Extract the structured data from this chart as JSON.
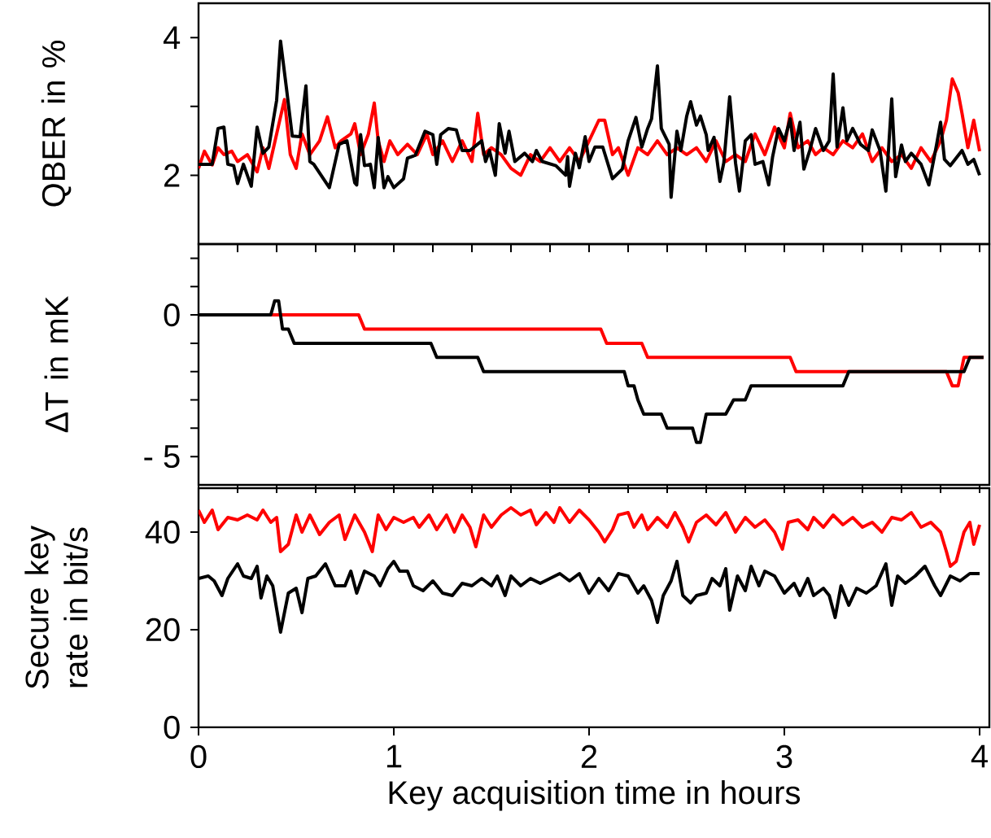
{
  "chart_data": [
    {
      "type": "line",
      "ylabel": "QBER in %",
      "xlim": [
        0,
        4.05
      ],
      "ylim": [
        1,
        4.5
      ],
      "yticks": [
        2,
        {
          "value": 3,
          "label": null
        },
        4
      ],
      "tick_labels": "y",
      "series": [
        {
          "color": "#ff0000",
          "x": [
            0,
            0.03,
            0.07,
            0.1,
            0.13,
            0.17,
            0.2,
            0.25,
            0.3,
            0.33,
            0.36,
            0.4,
            0.44,
            0.47,
            0.5,
            0.53,
            0.57,
            0.62,
            0.66,
            0.7,
            0.73,
            0.78,
            0.8,
            0.83,
            0.87,
            0.9,
            0.92,
            0.95,
            0.98,
            1.02,
            1.07,
            1.12,
            1.17,
            1.2,
            1.25,
            1.3,
            1.35,
            1.4,
            1.43,
            1.46,
            1.5,
            1.55,
            1.6,
            1.65,
            1.7,
            1.75,
            1.8,
            1.85,
            1.9,
            1.95,
            2.0,
            2.05,
            2.08,
            2.12,
            2.15,
            2.2,
            2.25,
            2.3,
            2.35,
            2.4,
            2.45,
            2.5,
            2.55,
            2.6,
            2.65,
            2.7,
            2.75,
            2.8,
            2.85,
            2.9,
            2.95,
            3.0,
            3.03,
            3.07,
            3.12,
            3.16,
            3.2,
            3.25,
            3.3,
            3.35,
            3.4,
            3.45,
            3.5,
            3.55,
            3.6,
            3.65,
            3.7,
            3.75,
            3.8,
            3.83,
            3.86,
            3.89,
            3.91,
            3.94,
            3.97,
            4.0
          ],
          "values": [
            2.1,
            2.35,
            2.15,
            2.4,
            2.3,
            2.35,
            2.2,
            2.3,
            2.05,
            2.4,
            2.1,
            2.6,
            3.1,
            2.3,
            2.1,
            2.6,
            2.3,
            2.5,
            2.85,
            2.4,
            2.5,
            2.6,
            2.75,
            2.3,
            2.6,
            3.05,
            2.5,
            2.2,
            2.5,
            2.3,
            2.45,
            2.3,
            2.6,
            2.3,
            2.5,
            2.2,
            2.5,
            2.2,
            2.9,
            2.3,
            2.4,
            2.3,
            2.1,
            2.0,
            2.3,
            2.2,
            2.4,
            2.2,
            2.4,
            2.2,
            2.5,
            2.8,
            2.8,
            2.3,
            2.4,
            2.0,
            2.4,
            2.3,
            2.5,
            2.3,
            2.4,
            2.3,
            2.4,
            2.2,
            2.5,
            2.2,
            2.3,
            2.2,
            2.6,
            2.3,
            2.7,
            2.4,
            2.9,
            2.4,
            2.5,
            2.3,
            2.4,
            2.3,
            2.5,
            2.4,
            2.6,
            2.2,
            2.4,
            2.2,
            2.3,
            2.1,
            2.4,
            2.2,
            2.5,
            2.8,
            3.4,
            3.2,
            2.9,
            2.4,
            2.8,
            2.35
          ]
        },
        {
          "color": "#000000",
          "x": [
            0,
            0.07,
            0.1,
            0.13,
            0.15,
            0.18,
            0.2,
            0.23,
            0.27,
            0.3,
            0.33,
            0.36,
            0.4,
            0.42,
            0.45,
            0.48,
            0.52,
            0.55,
            0.57,
            0.59,
            0.67,
            0.72,
            0.76,
            0.8,
            0.81,
            0.83,
            0.85,
            0.88,
            0.9,
            0.92,
            0.95,
            0.97,
            1.0,
            1.05,
            1.07,
            1.11,
            1.16,
            1.2,
            1.22,
            1.24,
            1.28,
            1.32,
            1.35,
            1.39,
            1.45,
            1.47,
            1.49,
            1.52,
            1.54,
            1.57,
            1.59,
            1.62,
            1.67,
            1.71,
            1.73,
            1.76,
            1.83,
            1.88,
            1.89,
            1.9,
            1.93,
            1.95,
            1.98,
            2.0,
            2.03,
            2.07,
            2.12,
            2.17,
            2.2,
            2.24,
            2.27,
            2.3,
            2.32,
            2.35,
            2.37,
            2.41,
            2.42,
            2.45,
            2.47,
            2.5,
            2.52,
            2.55,
            2.57,
            2.6,
            2.61,
            2.64,
            2.67,
            2.69,
            2.72,
            2.75,
            2.77,
            2.8,
            2.83,
            2.85,
            2.89,
            2.92,
            2.94,
            2.97,
            3.0,
            3.03,
            3.05,
            3.08,
            3.1,
            3.13,
            3.16,
            3.2,
            3.23,
            3.25,
            3.27,
            3.3,
            3.32,
            3.35,
            3.39,
            3.43,
            3.45,
            3.49,
            3.52,
            3.55,
            3.57,
            3.6,
            3.62,
            3.65,
            3.7,
            3.74,
            3.78,
            3.8,
            3.82,
            3.85,
            3.91,
            3.94,
            3.97,
            4.0
          ],
          "values": [
            2.16,
            2.16,
            2.68,
            2.7,
            2.16,
            2.14,
            1.88,
            2.16,
            1.84,
            2.7,
            2.32,
            2.41,
            3.09,
            3.95,
            3.27,
            2.57,
            2.56,
            3.3,
            2.2,
            2.16,
            1.82,
            2.45,
            2.5,
            1.89,
            1.86,
            2.59,
            2.14,
            2.16,
            1.82,
            2.55,
            1.82,
            1.98,
            1.82,
            1.95,
            2.25,
            2.29,
            2.64,
            2.59,
            2.16,
            2.59,
            2.68,
            2.66,
            2.36,
            2.36,
            2.5,
            2.2,
            2.36,
            2.0,
            2.75,
            2.32,
            2.64,
            2.2,
            2.32,
            2.2,
            2.36,
            2.2,
            2.14,
            2.0,
            2.27,
            1.84,
            2.32,
            2.11,
            2.56,
            2.2,
            2.41,
            2.41,
            1.95,
            2.09,
            2.5,
            2.84,
            2.41,
            2.68,
            2.82,
            3.59,
            2.68,
            2.45,
            1.68,
            2.64,
            2.36,
            2.86,
            3.07,
            2.73,
            2.86,
            2.59,
            2.36,
            2.55,
            1.91,
            2.18,
            3.14,
            2.18,
            1.77,
            2.5,
            2.59,
            2.16,
            2.2,
            1.86,
            2.27,
            2.68,
            2.5,
            2.82,
            2.36,
            2.77,
            2.09,
            2.36,
            2.68,
            2.36,
            2.5,
            3.47,
            2.41,
            2.98,
            2.5,
            2.68,
            2.45,
            2.36,
            2.66,
            2.36,
            1.77,
            3.11,
            1.98,
            2.44,
            2.2,
            2.32,
            2.16,
            1.86,
            2.45,
            2.77,
            2.23,
            2.14,
            2.36,
            2.16,
            2.23,
            2.0
          ]
        }
      ]
    },
    {
      "type": "line",
      "ylabel": "ΔT in mK",
      "xlim": [
        0,
        4.05
      ],
      "ylim": [
        -6,
        2.5
      ],
      "yticks": [
        {
          "value": 2,
          "label": null
        },
        {
          "value": 1,
          "label": null
        },
        0,
        {
          "value": -1,
          "label": null
        },
        {
          "value": -2,
          "label": null
        },
        {
          "value": -3,
          "label": null
        },
        {
          "value": -4,
          "label": null
        },
        {
          "value": -5,
          "label": "- 5"
        }
      ],
      "tick_labels": "y",
      "series": [
        {
          "color": "#ff0000",
          "x": [
            0,
            0.82,
            0.85,
            2.06,
            2.09,
            2.27,
            2.3,
            3.03,
            3.06,
            3.83,
            3.86,
            3.89,
            3.92,
            4.02
          ],
          "values": [
            0,
            0,
            -0.5,
            -0.5,
            -1,
            -1,
            -1.5,
            -1.5,
            -2,
            -2,
            -2.5,
            -2.5,
            -1.5,
            -1.5
          ]
        },
        {
          "color": "#000000",
          "x": [
            0,
            0.37,
            0.39,
            0.41,
            0.43,
            0.46,
            0.49,
            1.19,
            1.22,
            1.43,
            1.46,
            2.18,
            2.2,
            2.23,
            2.25,
            2.28,
            2.37,
            2.4,
            2.53,
            2.55,
            2.57,
            2.6,
            2.7,
            2.74,
            2.8,
            2.83,
            3.3,
            3.33,
            3.92,
            3.95,
            4.02
          ],
          "values": [
            0,
            0,
            0.5,
            0.5,
            -0.5,
            -0.5,
            -1,
            -1,
            -1.5,
            -1.5,
            -2,
            -2,
            -2.5,
            -2.5,
            -3,
            -3.5,
            -3.5,
            -4,
            -4,
            -4.5,
            -4.5,
            -3.5,
            -3.5,
            -3,
            -3,
            -2.5,
            -2.5,
            -2,
            -2,
            -1.5,
            -1.5
          ]
        }
      ]
    },
    {
      "type": "line",
      "ylabel": "Secure key rate in bit/s",
      "xlabel": "Key acquisition time in hours",
      "xlim": [
        0,
        4.05
      ],
      "ylim": [
        0,
        49
      ],
      "xticks": [
        0,
        1,
        2,
        3,
        4
      ],
      "yticks": [
        0,
        20,
        40
      ],
      "series": [
        {
          "color": "#ff0000",
          "x": [
            0,
            0.03,
            0.07,
            0.1,
            0.15,
            0.2,
            0.25,
            0.3,
            0.33,
            0.37,
            0.4,
            0.42,
            0.46,
            0.5,
            0.53,
            0.57,
            0.62,
            0.67,
            0.72,
            0.75,
            0.8,
            0.85,
            0.89,
            0.92,
            0.96,
            1.0,
            1.05,
            1.1,
            1.13,
            1.18,
            1.22,
            1.27,
            1.31,
            1.35,
            1.39,
            1.42,
            1.46,
            1.5,
            1.55,
            1.6,
            1.65,
            1.7,
            1.73,
            1.78,
            1.82,
            1.85,
            1.9,
            1.95,
            2.0,
            2.05,
            2.08,
            2.12,
            2.15,
            2.2,
            2.23,
            2.27,
            2.3,
            2.35,
            2.4,
            2.44,
            2.48,
            2.51,
            2.55,
            2.6,
            2.65,
            2.7,
            2.75,
            2.8,
            2.85,
            2.9,
            2.95,
            2.99,
            3.02,
            3.07,
            3.12,
            3.15,
            3.2,
            3.25,
            3.3,
            3.35,
            3.4,
            3.45,
            3.5,
            3.55,
            3.6,
            3.65,
            3.7,
            3.75,
            3.8,
            3.83,
            3.85,
            3.88,
            3.92,
            3.95,
            3.97,
            4.0
          ],
          "values": [
            44.5,
            42,
            44.5,
            40.5,
            43,
            42.5,
            43.5,
            42.5,
            44.5,
            42,
            43,
            36,
            37.5,
            43.5,
            40,
            43.5,
            39.5,
            42,
            43.5,
            38.5,
            43.5,
            40,
            36,
            43.5,
            40.5,
            43,
            42,
            43,
            41,
            43.5,
            40.5,
            43.5,
            40,
            43.5,
            41,
            37,
            43.5,
            41,
            43.5,
            45,
            43.5,
            44.5,
            41.5,
            44,
            42,
            45,
            42,
            44.5,
            42.5,
            40,
            38,
            40.5,
            43.5,
            44,
            41,
            43.5,
            40.5,
            43,
            41,
            44,
            41,
            38,
            42,
            43.5,
            41.5,
            44,
            40,
            43,
            41,
            42.5,
            40,
            36.5,
            42,
            42.5,
            40.5,
            43,
            41,
            43.5,
            41.5,
            43,
            41,
            42,
            40,
            43,
            42.5,
            44,
            41,
            42,
            40,
            36,
            33,
            34,
            40,
            42,
            37.5,
            41.5
          ]
        },
        {
          "color": "#000000",
          "x": [
            0,
            0.05,
            0.08,
            0.12,
            0.15,
            0.2,
            0.23,
            0.27,
            0.3,
            0.32,
            0.35,
            0.38,
            0.42,
            0.46,
            0.5,
            0.53,
            0.56,
            0.6,
            0.65,
            0.7,
            0.75,
            0.78,
            0.81,
            0.85,
            0.9,
            0.93,
            0.97,
            1.0,
            1.03,
            1.07,
            1.1,
            1.15,
            1.2,
            1.25,
            1.3,
            1.35,
            1.4,
            1.45,
            1.5,
            1.53,
            1.57,
            1.6,
            1.65,
            1.7,
            1.75,
            1.8,
            1.85,
            1.9,
            1.95,
            2.0,
            2.05,
            2.1,
            2.15,
            2.2,
            2.25,
            2.28,
            2.32,
            2.35,
            2.38,
            2.42,
            2.45,
            2.48,
            2.52,
            2.55,
            2.6,
            2.63,
            2.67,
            2.7,
            2.72,
            2.76,
            2.8,
            2.83,
            2.87,
            2.9,
            2.95,
            3.0,
            3.05,
            3.08,
            3.12,
            3.15,
            3.2,
            3.23,
            3.26,
            3.29,
            3.33,
            3.37,
            3.42,
            3.47,
            3.52,
            3.55,
            3.58,
            3.62,
            3.67,
            3.72,
            3.77,
            3.8,
            3.85,
            3.9,
            3.95,
            4.0
          ],
          "values": [
            30.5,
            31,
            30,
            27,
            30.5,
            33.5,
            31,
            30.5,
            33,
            26.5,
            31,
            29,
            19.5,
            27.5,
            28.5,
            23.5,
            30.5,
            31,
            33.5,
            29,
            29,
            32,
            27.5,
            32,
            31,
            29,
            32.5,
            34,
            32,
            32,
            29,
            28,
            30,
            27.5,
            27,
            29.5,
            29,
            30.5,
            29,
            31,
            27,
            31,
            29,
            30.5,
            29.5,
            30.5,
            31.5,
            30,
            31.5,
            27.5,
            30.5,
            28,
            31.5,
            31,
            27.5,
            29,
            26,
            21.5,
            27,
            30,
            34,
            27,
            25.5,
            27,
            27.5,
            30.5,
            29,
            32.5,
            24,
            31,
            28,
            33,
            29,
            32,
            31,
            27.5,
            29.5,
            27,
            30.5,
            27,
            28.5,
            27,
            22.5,
            29,
            25,
            28.5,
            27.5,
            29,
            33.5,
            25,
            31,
            29.5,
            31,
            33,
            29,
            27,
            31,
            30,
            31.5,
            31.5
          ]
        }
      ]
    }
  ]
}
